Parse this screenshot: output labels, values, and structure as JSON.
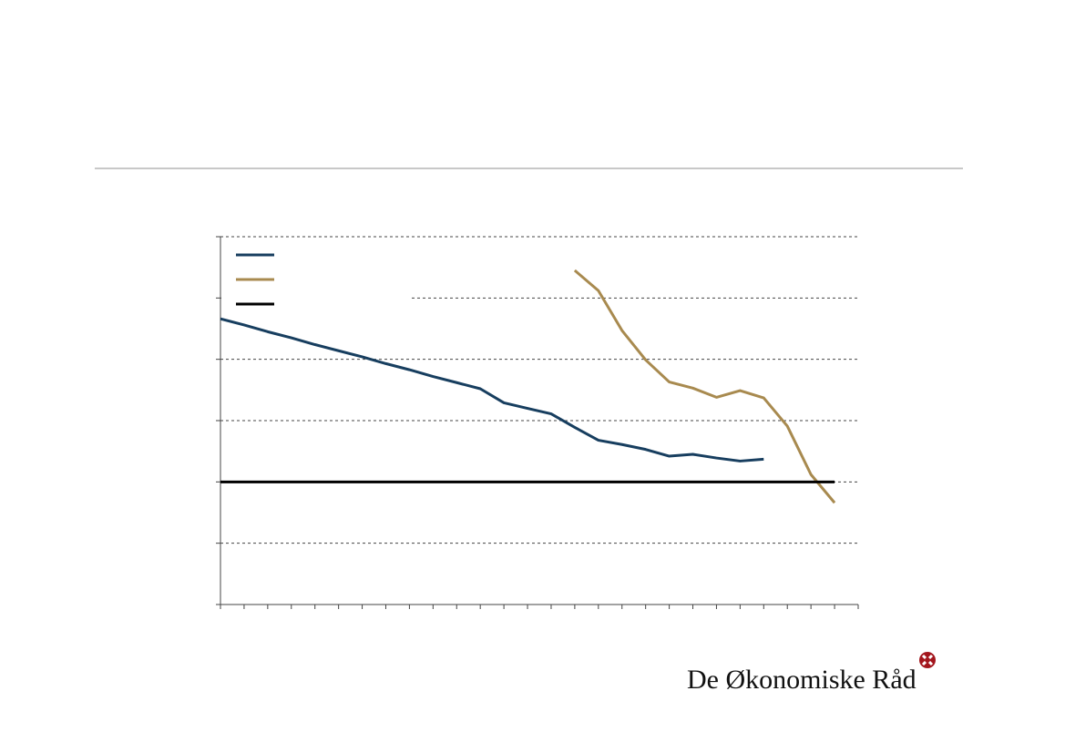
{
  "chart_data": {
    "type": "line",
    "x": [
      0,
      1,
      2,
      3,
      4,
      5,
      6,
      7,
      8,
      9,
      10,
      11,
      12,
      13,
      14,
      15,
      16,
      17,
      18,
      19,
      20,
      21,
      22,
      23,
      24,
      25,
      26
    ],
    "series": [
      {
        "color": "#173e5f",
        "values": [
          2.66,
          2.56,
          2.45,
          2.35,
          2.24,
          2.14,
          2.04,
          1.93,
          1.83,
          1.72,
          1.62,
          1.52,
          1.29,
          1.2,
          1.11,
          0.89,
          0.68,
          0.61,
          0.53,
          0.42,
          0.45,
          0.39,
          0.34,
          0.37,
          null,
          null,
          null
        ]
      },
      {
        "color": "#a88a4f",
        "values": [
          null,
          null,
          null,
          null,
          null,
          null,
          null,
          null,
          null,
          null,
          null,
          null,
          null,
          null,
          null,
          3.45,
          3.12,
          2.47,
          1.99,
          1.63,
          1.53,
          1.38,
          1.49,
          1.37,
          0.91,
          0.12,
          -0.34
        ]
      },
      {
        "color": "#000000",
        "values": [
          0,
          0,
          0,
          0,
          0,
          0,
          0,
          0,
          0,
          0,
          0,
          0,
          0,
          0,
          0,
          0,
          0,
          0,
          0,
          0,
          0,
          0,
          0,
          0,
          0,
          0,
          0
        ]
      }
    ],
    "xlim": [
      0,
      27
    ],
    "xticks": [
      0,
      1,
      2,
      3,
      4,
      5,
      6,
      7,
      8,
      9,
      10,
      11,
      12,
      13,
      14,
      15,
      16,
      17,
      18,
      19,
      20,
      21,
      22,
      23,
      24,
      25,
      26,
      27
    ],
    "ylim": [
      -2,
      4
    ],
    "yticks": [
      -2,
      -1,
      0,
      1,
      2,
      3,
      4
    ],
    "grid": true,
    "legend": "upper left"
  },
  "footer": {
    "logo": "De Økonomiske Råd"
  }
}
